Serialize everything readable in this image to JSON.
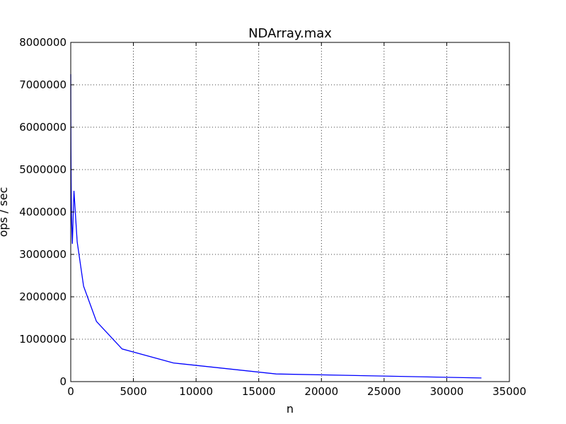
{
  "chart_data": {
    "type": "line",
    "title": "NDArray.max",
    "xlabel": "n",
    "ylabel": "ops / sec",
    "xlim": [
      0,
      35000
    ],
    "ylim": [
      0,
      8000000
    ],
    "xticks": [
      0,
      5000,
      10000,
      15000,
      20000,
      25000,
      30000,
      35000
    ],
    "yticks": [
      0,
      1000000,
      2000000,
      3000000,
      4000000,
      5000000,
      6000000,
      7000000,
      8000000
    ],
    "xtick_labels": [
      "0",
      "5000",
      "10000",
      "15000",
      "20000",
      "25000",
      "30000",
      "35000"
    ],
    "ytick_labels": [
      "0",
      "1000000",
      "2000000",
      "3000000",
      "4000000",
      "5000000",
      "6000000",
      "7000000",
      "8000000"
    ],
    "grid": true,
    "series": [
      {
        "color": "#0000ff",
        "x": [
          1,
          2,
          4,
          8,
          16,
          32,
          64,
          128,
          256,
          512,
          1024,
          2048,
          4096,
          8192,
          16384,
          32768
        ],
        "y": [
          7250000,
          7100000,
          6700000,
          6200000,
          5500000,
          4700000,
          3850000,
          3250000,
          4500000,
          3300000,
          2250000,
          1420000,
          770000,
          440000,
          180000,
          85000
        ]
      }
    ]
  }
}
